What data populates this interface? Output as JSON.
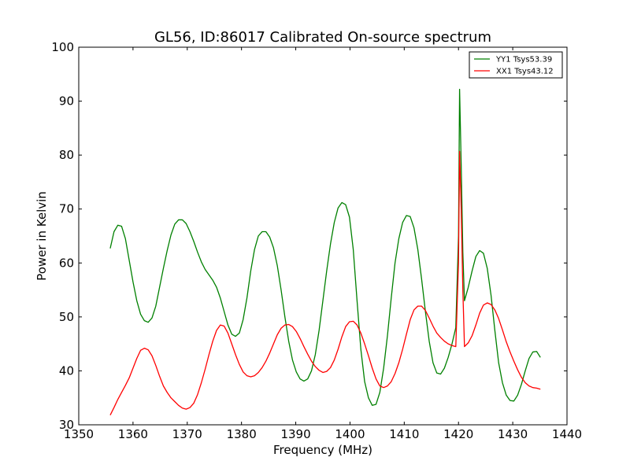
{
  "chart_data": {
    "type": "line",
    "title": "GL56, ID:86017 Calibrated On-source spectrum",
    "xlabel": "Frequency (MHz)",
    "ylabel": "Power in Kelvin",
    "xlim": [
      1350,
      1440
    ],
    "ylim": [
      30,
      100
    ],
    "x_ticks": [
      1350,
      1360,
      1370,
      1380,
      1390,
      1400,
      1410,
      1420,
      1430,
      1440
    ],
    "y_ticks": [
      30,
      40,
      50,
      60,
      70,
      80,
      90,
      100
    ],
    "x_tick_labels": [
      "1350",
      "1360",
      "1370",
      "1380",
      "1390",
      "1400",
      "1410",
      "1420",
      "1430",
      "1440"
    ],
    "y_tick_labels": [
      "30",
      "40",
      "50",
      "60",
      "70",
      "80",
      "90",
      "100"
    ],
    "grid": false,
    "legend_position": "top-right",
    "series": [
      {
        "name": "YY1 Tsys53.39",
        "color": "#008000",
        "points": [
          [
            1355.8,
            62.7
          ],
          [
            1356.5,
            65.8
          ],
          [
            1357.2,
            67.0
          ],
          [
            1357.9,
            66.8
          ],
          [
            1358.6,
            64.5
          ],
          [
            1359.3,
            60.5
          ],
          [
            1360.0,
            56.5
          ],
          [
            1360.7,
            53.0
          ],
          [
            1361.4,
            50.5
          ],
          [
            1362.1,
            49.3
          ],
          [
            1362.8,
            49.0
          ],
          [
            1363.5,
            49.8
          ],
          [
            1364.2,
            52.0
          ],
          [
            1364.9,
            55.5
          ],
          [
            1365.6,
            59.0
          ],
          [
            1366.3,
            62.3
          ],
          [
            1367.0,
            65.2
          ],
          [
            1367.7,
            67.2
          ],
          [
            1368.4,
            68.0
          ],
          [
            1369.1,
            68.0
          ],
          [
            1369.8,
            67.3
          ],
          [
            1370.5,
            65.8
          ],
          [
            1371.2,
            64.0
          ],
          [
            1371.9,
            62.0
          ],
          [
            1372.6,
            60.2
          ],
          [
            1373.3,
            58.8
          ],
          [
            1374.0,
            57.8
          ],
          [
            1374.7,
            56.8
          ],
          [
            1375.4,
            55.5
          ],
          [
            1376.1,
            53.5
          ],
          [
            1376.8,
            51.0
          ],
          [
            1377.5,
            48.5
          ],
          [
            1378.2,
            46.8
          ],
          [
            1378.9,
            46.4
          ],
          [
            1379.6,
            47.0
          ],
          [
            1380.3,
            49.5
          ],
          [
            1381.0,
            53.5
          ],
          [
            1381.7,
            58.5
          ],
          [
            1382.4,
            62.5
          ],
          [
            1383.1,
            65.0
          ],
          [
            1383.8,
            65.8
          ],
          [
            1384.5,
            65.8
          ],
          [
            1385.2,
            64.8
          ],
          [
            1385.9,
            62.8
          ],
          [
            1386.6,
            59.5
          ],
          [
            1387.3,
            55.0
          ],
          [
            1388.0,
            50.0
          ],
          [
            1388.7,
            45.5
          ],
          [
            1389.4,
            42.0
          ],
          [
            1390.1,
            39.8
          ],
          [
            1390.8,
            38.5
          ],
          [
            1391.5,
            38.1
          ],
          [
            1392.2,
            38.5
          ],
          [
            1392.9,
            40.0
          ],
          [
            1393.6,
            43.0
          ],
          [
            1394.3,
            47.5
          ],
          [
            1395.0,
            53.0
          ],
          [
            1395.7,
            58.5
          ],
          [
            1396.4,
            63.5
          ],
          [
            1397.1,
            67.5
          ],
          [
            1397.8,
            70.2
          ],
          [
            1398.5,
            71.2
          ],
          [
            1399.2,
            70.8
          ],
          [
            1399.9,
            68.5
          ],
          [
            1400.6,
            62.5
          ],
          [
            1401.3,
            53.0
          ],
          [
            1402.0,
            44.0
          ],
          [
            1402.7,
            38.0
          ],
          [
            1403.4,
            35.0
          ],
          [
            1404.1,
            33.6
          ],
          [
            1404.8,
            33.8
          ],
          [
            1405.5,
            36.0
          ],
          [
            1406.2,
            40.5
          ],
          [
            1406.9,
            46.5
          ],
          [
            1407.6,
            53.5
          ],
          [
            1408.3,
            60.0
          ],
          [
            1409.0,
            64.5
          ],
          [
            1409.7,
            67.5
          ],
          [
            1410.4,
            68.8
          ],
          [
            1411.1,
            68.6
          ],
          [
            1411.8,
            66.5
          ],
          [
            1412.5,
            62.5
          ],
          [
            1413.2,
            57.0
          ],
          [
            1413.9,
            51.0
          ],
          [
            1414.6,
            45.5
          ],
          [
            1415.3,
            41.5
          ],
          [
            1416.0,
            39.6
          ],
          [
            1416.7,
            39.4
          ],
          [
            1417.4,
            40.5
          ],
          [
            1418.1,
            42.5
          ],
          [
            1418.8,
            45.0
          ],
          [
            1419.5,
            48.0
          ],
          [
            1420.0,
            65.0
          ],
          [
            1420.2,
            92.2
          ],
          [
            1420.5,
            78.0
          ],
          [
            1420.8,
            62.0
          ],
          [
            1421.1,
            53.0
          ],
          [
            1421.8,
            55.5
          ],
          [
            1422.5,
            58.5
          ],
          [
            1423.2,
            61.2
          ],
          [
            1423.9,
            62.3
          ],
          [
            1424.6,
            61.8
          ],
          [
            1425.3,
            59.0
          ],
          [
            1426.0,
            54.0
          ],
          [
            1426.7,
            47.5
          ],
          [
            1427.4,
            41.5
          ],
          [
            1428.1,
            37.8
          ],
          [
            1428.8,
            35.5
          ],
          [
            1429.5,
            34.5
          ],
          [
            1430.2,
            34.4
          ],
          [
            1430.9,
            35.5
          ],
          [
            1431.6,
            37.5
          ],
          [
            1432.3,
            40.0
          ],
          [
            1433.0,
            42.3
          ],
          [
            1433.7,
            43.5
          ],
          [
            1434.4,
            43.6
          ],
          [
            1435.1,
            42.5
          ]
        ]
      },
      {
        "name": "XX1 Tsys43.12",
        "color": "#ff0000",
        "points": [
          [
            1355.8,
            31.8
          ],
          [
            1356.5,
            33.2
          ],
          [
            1357.2,
            34.7
          ],
          [
            1357.9,
            36.0
          ],
          [
            1358.6,
            37.3
          ],
          [
            1359.3,
            38.7
          ],
          [
            1360.0,
            40.5
          ],
          [
            1360.7,
            42.3
          ],
          [
            1361.4,
            43.8
          ],
          [
            1362.1,
            44.2
          ],
          [
            1362.8,
            43.9
          ],
          [
            1363.5,
            42.8
          ],
          [
            1364.2,
            41.0
          ],
          [
            1364.9,
            39.0
          ],
          [
            1365.6,
            37.2
          ],
          [
            1366.3,
            36.0
          ],
          [
            1367.0,
            35.0
          ],
          [
            1367.7,
            34.3
          ],
          [
            1368.4,
            33.6
          ],
          [
            1369.1,
            33.1
          ],
          [
            1369.8,
            32.9
          ],
          [
            1370.5,
            33.2
          ],
          [
            1371.2,
            34.0
          ],
          [
            1371.9,
            35.6
          ],
          [
            1372.6,
            37.8
          ],
          [
            1373.3,
            40.3
          ],
          [
            1374.0,
            43.0
          ],
          [
            1374.7,
            45.5
          ],
          [
            1375.4,
            47.5
          ],
          [
            1376.1,
            48.5
          ],
          [
            1376.8,
            48.3
          ],
          [
            1377.5,
            47.0
          ],
          [
            1378.2,
            45.0
          ],
          [
            1378.9,
            43.0
          ],
          [
            1379.6,
            41.2
          ],
          [
            1380.3,
            39.8
          ],
          [
            1381.0,
            39.1
          ],
          [
            1381.7,
            38.9
          ],
          [
            1382.4,
            39.1
          ],
          [
            1383.1,
            39.7
          ],
          [
            1383.8,
            40.6
          ],
          [
            1384.5,
            41.8
          ],
          [
            1385.2,
            43.3
          ],
          [
            1385.9,
            45.0
          ],
          [
            1386.6,
            46.7
          ],
          [
            1387.3,
            47.9
          ],
          [
            1388.0,
            48.5
          ],
          [
            1388.7,
            48.6
          ],
          [
            1389.4,
            48.2
          ],
          [
            1390.1,
            47.3
          ],
          [
            1390.8,
            46.0
          ],
          [
            1391.5,
            44.5
          ],
          [
            1392.2,
            43.1
          ],
          [
            1392.9,
            41.8
          ],
          [
            1393.6,
            40.8
          ],
          [
            1394.3,
            40.1
          ],
          [
            1395.0,
            39.7
          ],
          [
            1395.7,
            39.9
          ],
          [
            1396.4,
            40.6
          ],
          [
            1397.1,
            42.0
          ],
          [
            1397.8,
            44.0
          ],
          [
            1398.5,
            46.3
          ],
          [
            1399.2,
            48.2
          ],
          [
            1399.9,
            49.1
          ],
          [
            1400.6,
            49.2
          ],
          [
            1401.3,
            48.5
          ],
          [
            1402.0,
            47.0
          ],
          [
            1402.7,
            45.0
          ],
          [
            1403.4,
            42.8
          ],
          [
            1404.1,
            40.5
          ],
          [
            1404.8,
            38.5
          ],
          [
            1405.5,
            37.2
          ],
          [
            1406.2,
            36.9
          ],
          [
            1406.9,
            37.2
          ],
          [
            1407.6,
            38.0
          ],
          [
            1408.3,
            39.5
          ],
          [
            1409.0,
            41.5
          ],
          [
            1409.7,
            44.0
          ],
          [
            1410.4,
            46.8
          ],
          [
            1411.1,
            49.5
          ],
          [
            1411.8,
            51.3
          ],
          [
            1412.5,
            52.0
          ],
          [
            1413.2,
            52.0
          ],
          [
            1413.9,
            51.2
          ],
          [
            1414.6,
            49.8
          ],
          [
            1415.3,
            48.3
          ],
          [
            1416.0,
            47.0
          ],
          [
            1416.7,
            46.2
          ],
          [
            1417.4,
            45.5
          ],
          [
            1418.1,
            45.0
          ],
          [
            1418.8,
            44.7
          ],
          [
            1419.5,
            44.5
          ],
          [
            1420.0,
            60.0
          ],
          [
            1420.2,
            80.7
          ],
          [
            1420.5,
            70.0
          ],
          [
            1420.8,
            55.0
          ],
          [
            1421.1,
            44.5
          ],
          [
            1421.8,
            45.2
          ],
          [
            1422.5,
            46.5
          ],
          [
            1423.2,
            48.5
          ],
          [
            1423.9,
            50.7
          ],
          [
            1424.6,
            52.2
          ],
          [
            1425.3,
            52.6
          ],
          [
            1426.0,
            52.3
          ],
          [
            1426.7,
            51.3
          ],
          [
            1427.4,
            49.7
          ],
          [
            1428.1,
            47.6
          ],
          [
            1428.8,
            45.4
          ],
          [
            1429.5,
            43.5
          ],
          [
            1430.2,
            41.8
          ],
          [
            1430.9,
            40.2
          ],
          [
            1431.6,
            38.8
          ],
          [
            1432.3,
            37.8
          ],
          [
            1433.0,
            37.2
          ],
          [
            1433.7,
            36.9
          ],
          [
            1434.4,
            36.8
          ],
          [
            1435.1,
            36.6
          ]
        ]
      }
    ]
  }
}
